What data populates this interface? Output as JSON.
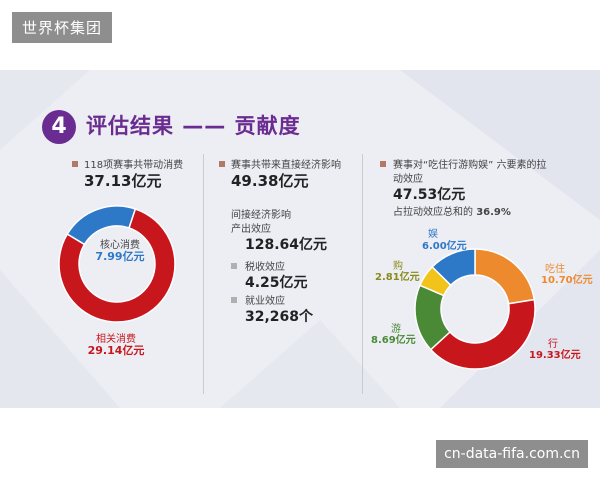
{
  "watermarks": {
    "top": "世界杯集团",
    "bottom": "cn-data-fifa.com.cn"
  },
  "slide": {
    "number": "4",
    "title": "评估结果 —— 贡献度",
    "col1": {
      "label": "118项赛事共带动消费",
      "value": "37.13亿元",
      "inner_label": "核心消费",
      "inner_value": "7.99亿元",
      "outer_label": "相关消费",
      "outer_value": "29.14亿元"
    },
    "col2": {
      "label": "赛事共带来直接经济影响",
      "value": "49.38亿元",
      "indirect_title": "间接经济影响",
      "items": [
        {
          "label": "产出效应",
          "value": "128.64亿元"
        },
        {
          "label": "税收效应",
          "value": "4.25亿元"
        },
        {
          "label": "就业效应",
          "value": "32,268个"
        }
      ]
    },
    "col3": {
      "label_line1": "赛事对“吃住行游购娱” 六要素的拉",
      "label_line2": "动效应",
      "value": "47.53亿元",
      "share_text": "占拉动效应总和的",
      "share_value": "36.9%",
      "segments": [
        {
          "name": "娱",
          "value": "6.00亿元"
        },
        {
          "name": "吃住",
          "value": "10.70亿元"
        },
        {
          "name": "行",
          "value": "19.33亿元"
        },
        {
          "name": "游",
          "value": "8.69亿元"
        },
        {
          "name": "购",
          "value": "2.81亿元"
        }
      ]
    }
  },
  "chart_data": [
    {
      "type": "pie",
      "title": "118项赛事共带动消费",
      "categories": [
        "核心消费",
        "相关消费"
      ],
      "values": [
        7.99,
        29.14
      ],
      "colors": [
        "#2e78c8",
        "#c8161d"
      ]
    },
    {
      "type": "pie",
      "title": "赛事对“吃住行游购娱” 六要素的拉动效应",
      "categories": [
        "吃住",
        "行",
        "游",
        "购",
        "娱"
      ],
      "values": [
        10.7,
        19.33,
        8.69,
        2.81,
        6.0
      ],
      "colors": [
        "#ee8a2e",
        "#c8161d",
        "#4a8a36",
        "#f2c419",
        "#2e78c8"
      ]
    }
  ],
  "colors": {
    "purple": "#6a2c91",
    "blue": "#2e78c8",
    "red": "#c8161d",
    "orange": "#ee8a2e",
    "green": "#4a8a36",
    "yellow": "#f2c419",
    "olive": "#8a8a1a"
  }
}
